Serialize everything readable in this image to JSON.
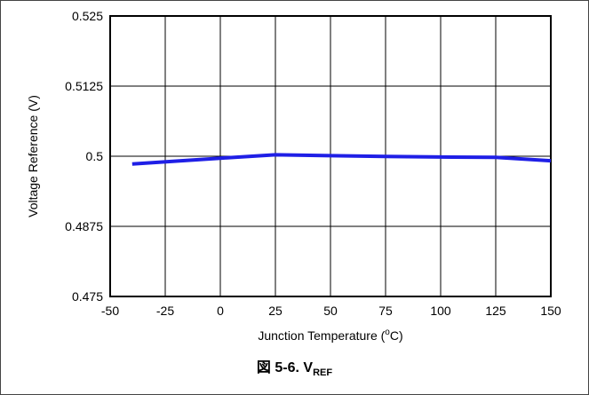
{
  "chart_data": {
    "type": "line",
    "xlabel_main": "Junction Temperature (",
    "xlabel_sup": "o",
    "xlabel_end": "C)",
    "ylabel": "Voltage Reference (V)",
    "xlim": [
      -50,
      150
    ],
    "ylim": [
      0.475,
      0.525
    ],
    "xticks": [
      "-50",
      "-25",
      "0",
      "25",
      "50",
      "75",
      "100",
      "125",
      "150"
    ],
    "yticks": [
      "0.475",
      "0.4875",
      "0.5",
      "0.5125",
      "0.525"
    ],
    "grid": true,
    "series": [
      {
        "color": "#1f1fe6",
        "x": [
          -40,
          0,
          25,
          50,
          75,
          100,
          125,
          150
        ],
        "y": [
          0.4986,
          0.49965,
          0.50025,
          0.5001,
          0.49995,
          0.49985,
          0.4998,
          0.4992
        ]
      }
    ]
  },
  "caption": {
    "prefix": "図 5-6. V",
    "sub": "REF"
  }
}
